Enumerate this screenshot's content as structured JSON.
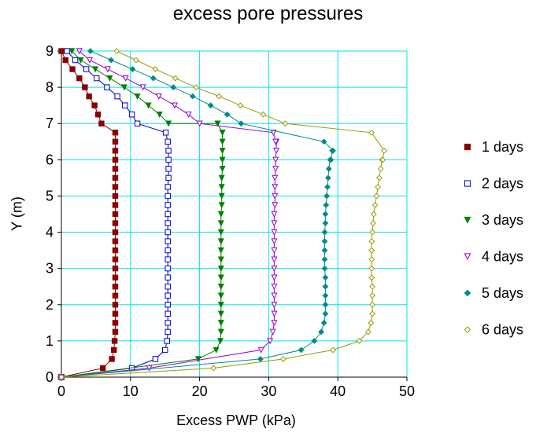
{
  "chart_data": {
    "type": "line",
    "title": "excess pore pressures",
    "xlabel": "Excess PWP (kPa)",
    "ylabel": "Y (m)",
    "xlim": [
      0,
      50
    ],
    "ylim": [
      0,
      9
    ],
    "xticks": [
      "0",
      "10",
      "20",
      "30",
      "40",
      "50"
    ],
    "yticks": [
      "0",
      "1",
      "2",
      "3",
      "4",
      "5",
      "6",
      "7",
      "8",
      "9"
    ],
    "grid": true,
    "grid_color": "#00e5ee",
    "legend_position": "right",
    "series": [
      {
        "name": "1 days",
        "color": "#8b0000",
        "marker": "square-filled",
        "x": [
          0,
          6.0,
          7.3,
          7.6,
          7.7,
          7.8,
          7.8,
          7.8,
          7.8,
          7.8,
          7.8,
          7.8,
          7.8,
          7.8,
          7.8,
          7.8,
          7.8,
          7.8,
          7.8,
          7.8,
          7.8,
          7.8,
          7.8,
          7.8,
          7.8,
          7.8,
          7.8,
          7.8,
          5.8,
          5.3,
          4.8,
          4.0,
          3.4,
          2.6,
          1.6,
          0.6,
          0
        ],
        "y": [
          0,
          0.25,
          0.5,
          0.75,
          1.0,
          1.25,
          1.5,
          1.75,
          2.0,
          2.25,
          2.5,
          2.75,
          3.0,
          3.25,
          3.5,
          3.75,
          4.0,
          4.25,
          4.5,
          4.75,
          5.0,
          5.25,
          5.5,
          5.75,
          6.0,
          6.25,
          6.5,
          6.75,
          7.0,
          7.25,
          7.5,
          7.75,
          8.0,
          8.25,
          8.5,
          8.75,
          9.0
        ]
      },
      {
        "name": "2 days",
        "color": "#0000cd",
        "marker": "square-open",
        "x": [
          0,
          10.2,
          13.6,
          15.0,
          15.3,
          15.4,
          15.4,
          15.4,
          15.4,
          15.4,
          15.4,
          15.4,
          15.4,
          15.4,
          15.4,
          15.4,
          15.4,
          15.4,
          15.4,
          15.4,
          15.4,
          15.4,
          15.5,
          15.5,
          15.5,
          15.5,
          15.4,
          15.1,
          11.0,
          10.2,
          9.2,
          8.1,
          6.6,
          5.1,
          3.6,
          2.0,
          0.8
        ],
        "y": [
          0,
          0.25,
          0.5,
          0.75,
          1.0,
          1.25,
          1.5,
          1.75,
          2.0,
          2.25,
          2.5,
          2.75,
          3.0,
          3.25,
          3.5,
          3.75,
          4.0,
          4.25,
          4.5,
          4.75,
          5.0,
          5.25,
          5.5,
          5.75,
          6.0,
          6.25,
          6.5,
          6.75,
          7.0,
          7.25,
          7.5,
          7.75,
          8.0,
          8.25,
          8.5,
          8.75,
          9.0
        ]
      },
      {
        "name": "3 days",
        "color": "#008000",
        "marker": "triangle-down-filled",
        "x": [
          0,
          19.8,
          22.4,
          23.0,
          23.1,
          23.1,
          23.1,
          23.1,
          23.1,
          23.1,
          23.1,
          23.1,
          23.1,
          23.1,
          23.1,
          23.1,
          23.1,
          23.1,
          23.2,
          23.2,
          23.2,
          23.2,
          23.3,
          23.3,
          23.3,
          23.3,
          23.3,
          22.6,
          15.5,
          14.2,
          12.6,
          11.0,
          9.1,
          7.0,
          4.9,
          2.8,
          1.5
        ],
        "y": [
          0,
          0.5,
          0.75,
          1.0,
          1.25,
          1.5,
          1.75,
          2.0,
          2.25,
          2.5,
          2.75,
          3.0,
          3.25,
          3.5,
          3.75,
          4.0,
          4.25,
          4.5,
          4.75,
          5.0,
          5.25,
          5.5,
          5.75,
          6.0,
          6.25,
          6.5,
          6.75,
          7.0,
          7.0,
          7.25,
          7.5,
          7.75,
          8.0,
          8.25,
          8.5,
          8.75,
          9.0
        ],
        "x_fix": "see data",
        "note": ""
      },
      {
        "name": "4 days",
        "color": "#9400d3",
        "marker": "triangle-down-open",
        "x": [
          0,
          12.7,
          28.9,
          30.2,
          30.6,
          30.8,
          30.8,
          30.8,
          30.8,
          30.8,
          30.8,
          30.8,
          30.8,
          30.8,
          30.8,
          30.8,
          30.8,
          30.8,
          30.9,
          30.9,
          30.9,
          30.9,
          31.0,
          31.0,
          31.1,
          31.1,
          31.0,
          30.7,
          20.0,
          18.4,
          16.4,
          14.1,
          11.8,
          9.3,
          6.7,
          4.1,
          2.6
        ],
        "y": [
          0,
          0.25,
          0.75,
          1.0,
          1.25,
          1.5,
          1.75,
          2.0,
          2.25,
          2.5,
          2.75,
          3.0,
          3.25,
          3.5,
          3.75,
          4.0,
          4.25,
          4.5,
          4.75,
          5.0,
          5.25,
          5.5,
          5.75,
          6.0,
          6.25,
          6.5,
          6.5,
          6.75,
          7.0,
          7.25,
          7.5,
          7.75,
          8.0,
          8.25,
          8.5,
          8.75,
          9.0
        ]
      },
      {
        "name": "5 days",
        "color": "#008b8b",
        "marker": "diamond-filled",
        "x": [
          0,
          28.8,
          34.7,
          36.6,
          37.6,
          38.0,
          38.2,
          38.2,
          38.2,
          38.2,
          38.2,
          38.1,
          38.1,
          38.1,
          38.1,
          38.1,
          38.2,
          38.2,
          38.3,
          38.4,
          38.5,
          38.6,
          38.7,
          38.9,
          39.0,
          39.2,
          39.3,
          38.0,
          26.0,
          24.0,
          21.6,
          19.0,
          16.2,
          13.3,
          10.3,
          7.2,
          4.2
        ],
        "y": [
          0,
          0.5,
          0.75,
          1.0,
          1.25,
          1.5,
          1.75,
          2.0,
          2.25,
          2.5,
          2.75,
          3.0,
          3.25,
          3.5,
          3.75,
          4.0,
          4.25,
          4.5,
          4.75,
          5.0,
          5.25,
          5.5,
          5.75,
          6.0,
          6.0,
          6.25,
          6.25,
          6.5,
          7.0,
          7.25,
          7.5,
          7.75,
          8.0,
          8.25,
          8.5,
          8.75,
          9.0
        ]
      },
      {
        "name": "6 days",
        "color": "#9a9a00",
        "marker": "diamond-open",
        "x": [
          0,
          22.0,
          32.1,
          39.3,
          43.1,
          44.4,
          44.8,
          45.0,
          45.0,
          45.0,
          45.0,
          44.9,
          44.9,
          44.9,
          44.9,
          44.9,
          45.0,
          45.1,
          45.2,
          45.4,
          45.6,
          45.8,
          46.0,
          46.2,
          46.4,
          46.5,
          46.7,
          44.9,
          32.4,
          29.2,
          25.9,
          22.8,
          19.5,
          16.5,
          13.6,
          10.8,
          8.0
        ],
        "y": [
          0,
          0.25,
          0.5,
          0.75,
          1.0,
          1.25,
          1.5,
          1.75,
          2.0,
          2.25,
          2.5,
          2.75,
          3.0,
          3.25,
          3.5,
          3.75,
          4.0,
          4.25,
          4.5,
          4.75,
          5.0,
          5.25,
          5.5,
          5.75,
          6.0,
          6.0,
          6.25,
          6.75,
          7.0,
          7.25,
          7.5,
          7.75,
          8.0,
          8.25,
          8.5,
          8.75,
          9.0
        ]
      }
    ]
  }
}
